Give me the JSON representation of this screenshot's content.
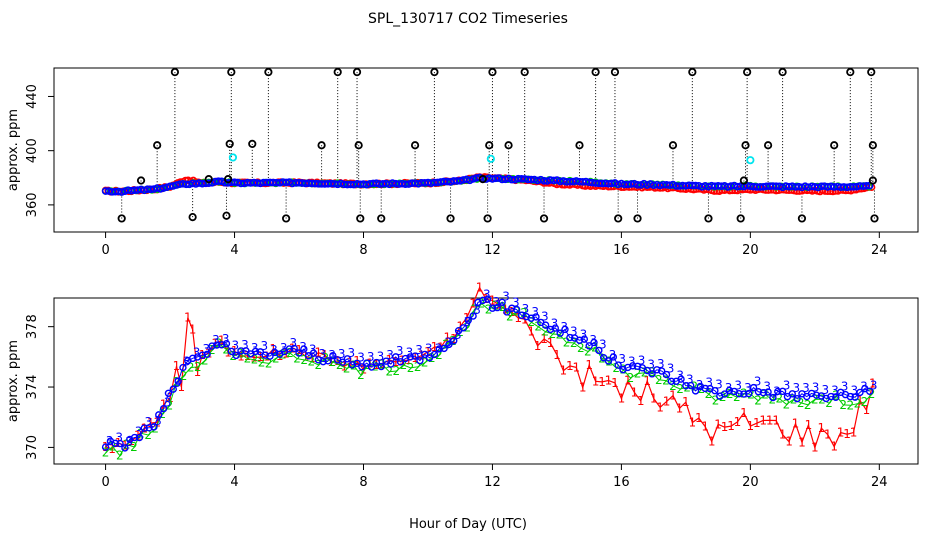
{
  "title": "SPL_130717  CO2 Timeseries",
  "xlabel": "Hour of Day (UTC)",
  "chart_data": [
    {
      "type": "scatter",
      "title": "SPL_130717  CO2 Timeseries",
      "ylabel": "approx. ppm",
      "xlabel": "",
      "xlim": [
        -1.6,
        25.2
      ],
      "ylim": [
        340,
        461
      ],
      "xticks": [
        "0",
        "4",
        "8",
        "12",
        "16",
        "20",
        "24"
      ],
      "yticks": [
        "360",
        "400",
        "440"
      ],
      "grid": false,
      "colors": {
        "s1": "#ff0000",
        "s2": "#00cc00",
        "s3": "#0000ff",
        "flag": "#000000",
        "cyan": "#00e5ee"
      },
      "series_baseline": {
        "x": [
          0,
          0.5,
          1,
          1.5,
          2,
          2.5,
          3,
          3.5,
          4,
          5,
          6,
          7,
          8,
          9,
          10,
          11,
          11.6,
          12,
          13,
          14,
          15,
          16,
          17,
          18,
          19,
          20,
          21,
          22,
          23,
          23.8
        ],
        "y3": [
          370.2,
          370.0,
          370.8,
          371.5,
          373.5,
          375.6,
          375.9,
          377.0,
          376.2,
          376.2,
          376.4,
          375.8,
          375.4,
          375.7,
          376.1,
          377.6,
          379.7,
          379.5,
          378.9,
          377.8,
          376.9,
          375.3,
          375.1,
          374.2,
          373.6,
          373.8,
          373.5,
          373.4,
          373.4,
          373.7
        ],
        "y1": [
          370.2,
          370.0,
          370.8,
          371.5,
          373.5,
          378.6,
          375.9,
          377.0,
          376.2,
          376.2,
          376.4,
          375.8,
          375.4,
          375.7,
          376.1,
          377.8,
          380.4,
          379.7,
          378.3,
          375.6,
          374.2,
          373.6,
          373.1,
          372.0,
          370.6,
          371.4,
          371.0,
          370.4,
          370.6,
          373.6
        ]
      },
      "flag_points_top": [
        {
          "x": 2.15,
          "y": 458
        },
        {
          "x": 3.9,
          "y": 458
        },
        {
          "x": 5.05,
          "y": 458
        },
        {
          "x": 7.2,
          "y": 458
        },
        {
          "x": 7.8,
          "y": 458
        },
        {
          "x": 10.2,
          "y": 458
        },
        {
          "x": 12.0,
          "y": 458
        },
        {
          "x": 13.0,
          "y": 458
        },
        {
          "x": 15.2,
          "y": 458
        },
        {
          "x": 15.8,
          "y": 458
        },
        {
          "x": 18.2,
          "y": 458
        },
        {
          "x": 19.9,
          "y": 458
        },
        {
          "x": 21.0,
          "y": 458
        },
        {
          "x": 23.1,
          "y": 458
        },
        {
          "x": 23.75,
          "y": 458
        }
      ],
      "flag_points_mid": [
        {
          "x": 1.6,
          "y": 404
        },
        {
          "x": 3.85,
          "y": 405
        },
        {
          "x": 4.55,
          "y": 405
        },
        {
          "x": 6.7,
          "y": 404
        },
        {
          "x": 7.85,
          "y": 404
        },
        {
          "x": 9.6,
          "y": 404
        },
        {
          "x": 11.9,
          "y": 404
        },
        {
          "x": 12.5,
          "y": 404
        },
        {
          "x": 14.7,
          "y": 404
        },
        {
          "x": 17.6,
          "y": 404
        },
        {
          "x": 19.85,
          "y": 404
        },
        {
          "x": 20.55,
          "y": 404
        },
        {
          "x": 22.6,
          "y": 404
        },
        {
          "x": 23.8,
          "y": 404
        }
      ],
      "flag_points_low": [
        {
          "x": 1.1,
          "y": 378
        },
        {
          "x": 3.2,
          "y": 379
        },
        {
          "x": 3.8,
          "y": 379
        },
        {
          "x": 11.7,
          "y": 379
        },
        {
          "x": 19.8,
          "y": 378
        },
        {
          "x": 23.8,
          "y": 378
        }
      ],
      "flag_points_bottom": [
        {
          "x": 0.5,
          "y": 350
        },
        {
          "x": 2.7,
          "y": 351
        },
        {
          "x": 3.75,
          "y": 352
        },
        {
          "x": 5.6,
          "y": 350
        },
        {
          "x": 7.9,
          "y": 350
        },
        {
          "x": 8.55,
          "y": 350
        },
        {
          "x": 10.7,
          "y": 350
        },
        {
          "x": 11.85,
          "y": 350
        },
        {
          "x": 13.6,
          "y": 350
        },
        {
          "x": 15.9,
          "y": 350
        },
        {
          "x": 16.5,
          "y": 350
        },
        {
          "x": 18.7,
          "y": 350
        },
        {
          "x": 19.7,
          "y": 350
        },
        {
          "x": 21.6,
          "y": 350
        },
        {
          "x": 23.85,
          "y": 350
        }
      ],
      "cyan_points": [
        {
          "x": 3.95,
          "y": 395
        },
        {
          "x": 11.95,
          "y": 394
        },
        {
          "x": 20.0,
          "y": 393
        }
      ]
    },
    {
      "type": "line",
      "title": "",
      "ylabel": "approx. ppm",
      "xlabel": "Hour of Day (UTC)",
      "xlim": [
        -1.6,
        25.2
      ],
      "ylim": [
        368.9,
        379.9
      ],
      "xticks": [
        "0",
        "4",
        "8",
        "12",
        "16",
        "20",
        "24"
      ],
      "yticks": [
        "370",
        "374",
        "378"
      ],
      "grid": false,
      "series": [
        {
          "name": "1",
          "color": "#ff0000",
          "marker": "1"
        },
        {
          "name": "2",
          "color": "#00cc00",
          "marker": "2"
        },
        {
          "name": "3",
          "color": "#0000ff",
          "marker": "3"
        }
      ],
      "spike": {
        "x": [
          2.35,
          2.55,
          2.7,
          2.85
        ],
        "y": [
          374.0,
          378.6,
          377.8,
          375.0
        ]
      }
    }
  ]
}
